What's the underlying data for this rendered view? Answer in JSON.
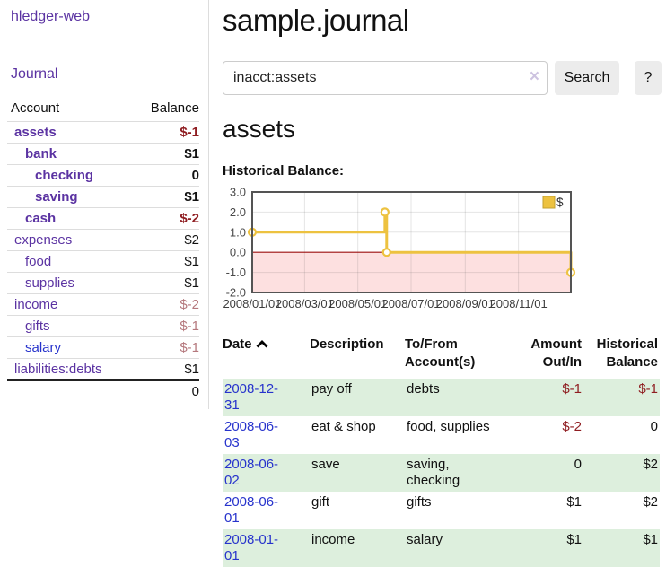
{
  "app": {
    "title": "hledger-web",
    "nav_journal": "Journal"
  },
  "sidebar": {
    "accounts": {
      "header_account": "Account",
      "header_balance": "Balance",
      "rows": [
        {
          "name": "assets",
          "balance": "$-1",
          "indent": 1,
          "bold": true,
          "neg": "strong"
        },
        {
          "name": "bank",
          "balance": "$1",
          "indent": 2,
          "bold": true
        },
        {
          "name": "checking",
          "balance": "0",
          "indent": 3,
          "bold": true
        },
        {
          "name": "saving",
          "balance": "$1",
          "indent": 3,
          "bold": true
        },
        {
          "name": "cash",
          "balance": "$-2",
          "indent": 2,
          "bold": true,
          "neg": "strong"
        },
        {
          "name": "expenses",
          "balance": "$2",
          "indent": 1
        },
        {
          "name": "food",
          "balance": "$1",
          "indent": 2
        },
        {
          "name": "supplies",
          "balance": "$1",
          "indent": 2
        },
        {
          "name": "income",
          "balance": "$-2",
          "indent": 1,
          "neg": "soft"
        },
        {
          "name": "gifts",
          "balance": "$-1",
          "indent": 2,
          "neg": "soft"
        },
        {
          "name": "salary",
          "balance": "$-1",
          "indent": 2,
          "neg": "soft",
          "blue": true
        },
        {
          "name": "liabilities:debts",
          "balance": "$1",
          "indent": 1
        }
      ],
      "total": "0"
    }
  },
  "main": {
    "title": "sample.journal",
    "search": {
      "value": "inacct:assets",
      "clear_icon": "×",
      "search_button": "Search",
      "help_button": "?"
    },
    "account_heading": "assets",
    "chart_title": "Historical Balance:"
  },
  "chart_data": {
    "type": "line",
    "step": true,
    "title": "Historical Balance",
    "series": [
      {
        "name": "$",
        "color": "#edc240",
        "points": [
          [
            "2008-01-01",
            1
          ],
          [
            "2008-06-01",
            2
          ],
          [
            "2008-06-03",
            0
          ],
          [
            "2008-12-31",
            -1
          ]
        ]
      }
    ],
    "ylim": [
      -2,
      3
    ],
    "yticks": [
      "3.0",
      "2.0",
      "1.0",
      "0.0",
      "-1.0",
      "-2.0"
    ],
    "xticks": [
      "2008/01/01",
      "2008/03/01",
      "2008/05/01",
      "2008/07/01",
      "2008/09/01",
      "2008/11/01"
    ],
    "xrange": [
      "2008-01-01",
      "2008-12-31"
    ],
    "legend_label": "$",
    "legend_position": "top-right",
    "grid": true,
    "colors": {
      "negative_region": "#fde0e0",
      "zero_line": "#9c0f0f",
      "plot_border": "#545454",
      "gridline": "rgba(84,84,84,0.16)"
    }
  },
  "register": {
    "headers": {
      "date": "Date",
      "description": "Description",
      "accounts": "To/From Account(s)",
      "amount": "Amount Out/In",
      "balance": "Historical Balance"
    },
    "sort_icon": "chevron-up",
    "rows": [
      {
        "date": "2008-12-31",
        "description": "pay off",
        "accounts": "debts",
        "amount": "$-1",
        "amount_neg": true,
        "balance": "$-1",
        "balance_neg": true
      },
      {
        "date": "2008-06-03",
        "description": "eat & shop",
        "accounts": "food, supplies",
        "amount": "$-2",
        "amount_neg": true,
        "balance": "0"
      },
      {
        "date": "2008-06-02",
        "description": "save",
        "accounts": "saving, checking",
        "amount": "0",
        "balance": "$2"
      },
      {
        "date": "2008-06-01",
        "description": "gift",
        "accounts": "gifts",
        "amount": "$1",
        "balance": "$2"
      },
      {
        "date": "2008-01-01",
        "description": "income",
        "accounts": "salary",
        "amount": "$1",
        "balance": "$1"
      }
    ]
  },
  "colors": {
    "link_purple": "#5b33a2",
    "link_blue": "#2733cc",
    "neg_strong": "#8f1d21",
    "neg_soft": "#b5787d",
    "row_green": "#ddefdd",
    "accent_gold": "#edc240"
  }
}
